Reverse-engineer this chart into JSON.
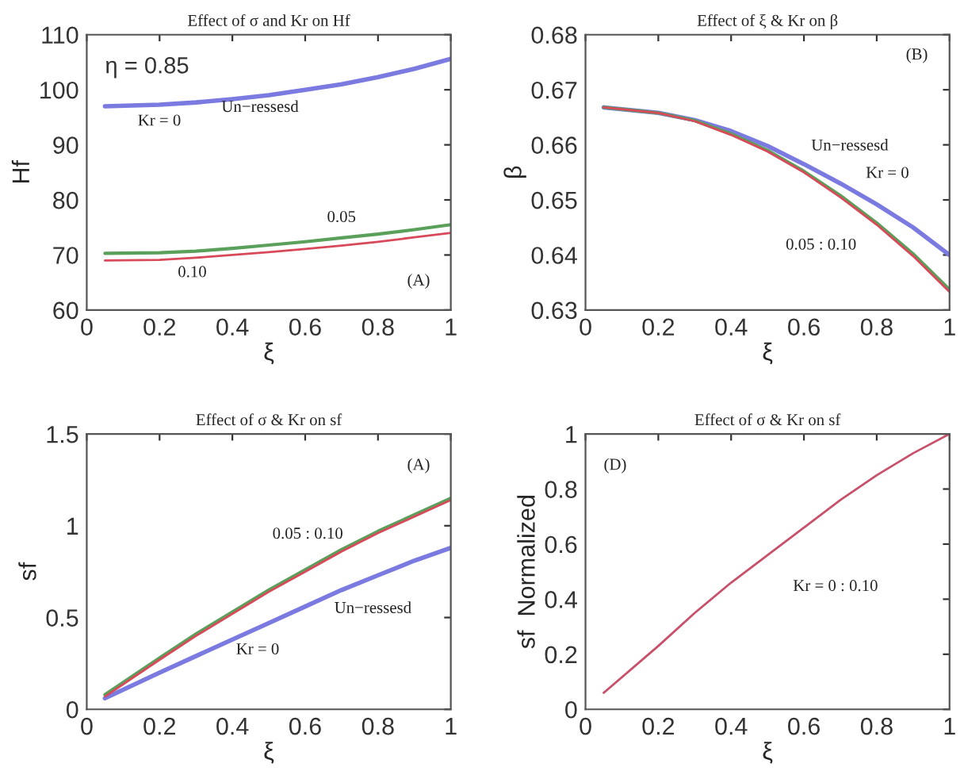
{
  "chart_data": [
    {
      "type": "line",
      "title": "Effect of σ and Kr on Hf",
      "xlabel": "ξ",
      "ylabel": "Hf",
      "x": [
        0.05,
        0.2,
        0.3,
        0.4,
        0.5,
        0.6,
        0.7,
        0.8,
        0.9,
        1.0
      ],
      "series": [
        {
          "color": "#7a7ae0",
          "values": [
            97,
            97.3,
            97.7,
            98.3,
            99,
            100,
            101,
            102.3,
            103.8,
            105.6
          ]
        },
        {
          "color": "#5aa05a",
          "values": [
            70.3,
            70.4,
            70.7,
            71.2,
            71.8,
            72.4,
            73.1,
            73.8,
            74.6,
            75.5
          ]
        },
        {
          "color": "#d84a5a",
          "values": [
            69,
            69.1,
            69.5,
            70,
            70.5,
            71.1,
            71.7,
            72.4,
            73.2,
            74
          ]
        }
      ],
      "xlim": [
        0,
        1
      ],
      "ylim": [
        60,
        110
      ],
      "xticks": [
        0,
        0.2,
        0.4,
        0.6,
        0.8,
        1
      ],
      "yticks": [
        60,
        70,
        80,
        90,
        100,
        110
      ],
      "annotations": [
        "η = 0.85",
        "Kr = 0",
        "Un−ressesd",
        "0.05",
        "0.10",
        "(A)"
      ]
    },
    {
      "type": "line",
      "title": "Effect of ξ & Kr on β",
      "xlabel": "ξ",
      "ylabel": "β",
      "x": [
        0.05,
        0.2,
        0.3,
        0.4,
        0.5,
        0.6,
        0.7,
        0.8,
        0.9,
        1.0
      ],
      "series": [
        {
          "color": "#7a7ae0",
          "values": [
            0.6668,
            0.6658,
            0.6645,
            0.6625,
            0.6598,
            0.6565,
            0.653,
            0.6492,
            0.645,
            0.64
          ]
        },
        {
          "color": "#5aa05a",
          "values": [
            0.6668,
            0.6658,
            0.6644,
            0.662,
            0.659,
            0.6552,
            0.6508,
            0.6458,
            0.6402,
            0.6337
          ]
        },
        {
          "color": "#d84a5a",
          "values": [
            0.6668,
            0.6658,
            0.6643,
            0.6618,
            0.6588,
            0.655,
            0.6505,
            0.6455,
            0.6398,
            0.6333
          ]
        }
      ],
      "xlim": [
        0,
        1
      ],
      "ylim": [
        0.63,
        0.68
      ],
      "xticks": [
        0,
        0.2,
        0.4,
        0.6,
        0.8,
        1
      ],
      "yticks": [
        0.63,
        0.64,
        0.65,
        0.66,
        0.67,
        0.68
      ],
      "annotations": [
        "(B)",
        "Un−ressesd",
        "Kr = 0",
        "0.05 : 0.10"
      ]
    },
    {
      "type": "line",
      "title": "Effect of σ & Kr on sf",
      "xlabel": "ξ",
      "ylabel": "sf",
      "x": [
        0.05,
        0.2,
        0.3,
        0.4,
        0.5,
        0.6,
        0.7,
        0.8,
        0.9,
        1.0
      ],
      "series": [
        {
          "color": "#7a7ae0",
          "values": [
            0.06,
            0.2,
            0.29,
            0.38,
            0.47,
            0.56,
            0.65,
            0.73,
            0.81,
            0.88
          ]
        },
        {
          "color": "#5aa05a",
          "values": [
            0.08,
            0.28,
            0.41,
            0.53,
            0.65,
            0.76,
            0.87,
            0.97,
            1.06,
            1.15
          ]
        },
        {
          "color": "#d84a5a",
          "values": [
            0.07,
            0.27,
            0.4,
            0.52,
            0.64,
            0.75,
            0.86,
            0.96,
            1.05,
            1.14
          ]
        }
      ],
      "xlim": [
        0,
        1
      ],
      "ylim": [
        0,
        1.5
      ],
      "xticks": [
        0,
        0.2,
        0.4,
        0.6,
        0.8,
        1
      ],
      "yticks": [
        0,
        0.5,
        1,
        1.5
      ],
      "annotations": [
        "(A)",
        "0.05 : 0.10",
        "Un−ressesd",
        "Kr = 0"
      ]
    },
    {
      "type": "line",
      "title": "Effect of σ & Kr on sf",
      "xlabel": "ξ",
      "ylabel": "sf  Normalized",
      "x": [
        0.05,
        0.2,
        0.3,
        0.4,
        0.5,
        0.6,
        0.7,
        0.8,
        0.9,
        1.0
      ],
      "series": [
        {
          "color": "#c8506a",
          "values": [
            0.06,
            0.23,
            0.35,
            0.46,
            0.56,
            0.66,
            0.76,
            0.85,
            0.93,
            1.0
          ]
        }
      ],
      "xlim": [
        0,
        1
      ],
      "ylim": [
        0,
        1
      ],
      "xticks": [
        0,
        0.2,
        0.4,
        0.6,
        0.8,
        1
      ],
      "yticks": [
        0,
        0.2,
        0.4,
        0.6,
        0.8,
        1
      ],
      "annotations": [
        "(D)",
        "Kr = 0 : 0.10"
      ]
    }
  ]
}
